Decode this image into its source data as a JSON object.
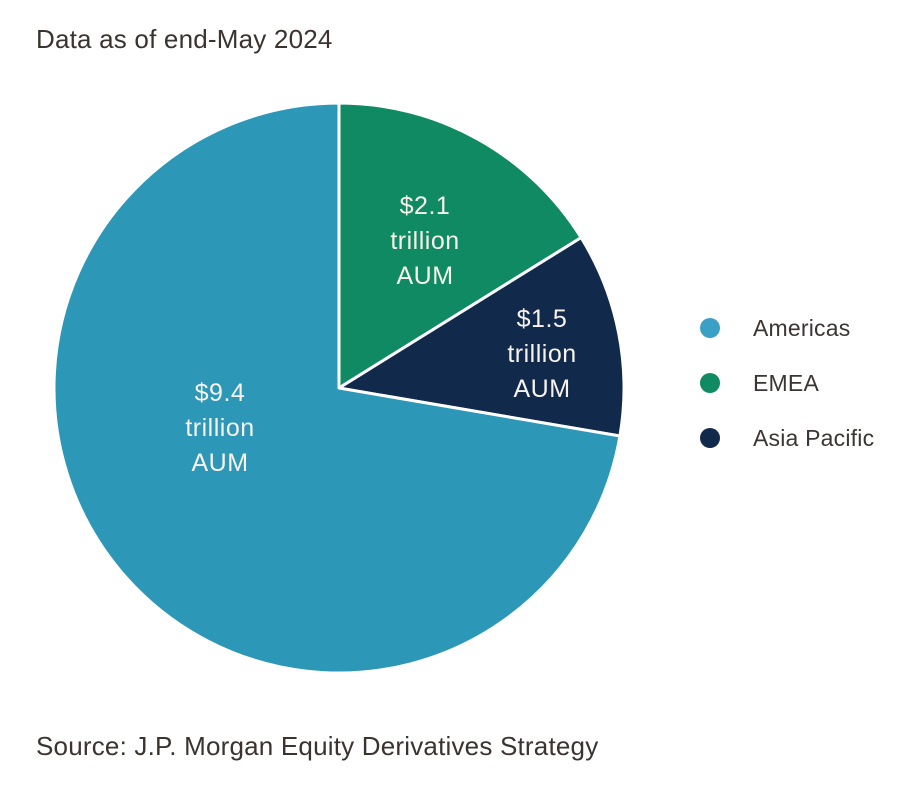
{
  "title": "Data as of end-May 2024",
  "source": "Source: J.P. Morgan Equity Derivatives Strategy",
  "colors": {
    "americas": "#2D97B8",
    "emea": "#108A62",
    "asia_pacific": "#112A4C",
    "slice_label_text": "#F7F3EC",
    "body_text": "#3B3330"
  },
  "chart_data": {
    "type": "pie",
    "title": "Data as of end-May 2024",
    "unit": "trillion USD AUM",
    "total": 13.0,
    "start_angle_deg": 0,
    "direction": "clockwise",
    "grid": false,
    "legend_position": "right",
    "slices": [
      {
        "name": "EMEA",
        "value": 2.1,
        "label_lines": [
          "$2.1",
          "trillion",
          "AUM"
        ],
        "color": "#108A62"
      },
      {
        "name": "Asia Pacific",
        "value": 1.5,
        "label_lines": [
          "$1.5",
          "trillion",
          "AUM"
        ],
        "color": "#112A4C"
      },
      {
        "name": "Americas",
        "value": 9.4,
        "label_lines": [
          "$9.4",
          "trillion",
          "AUM"
        ],
        "color": "#2D97B8"
      }
    ],
    "legend": [
      {
        "label": "Americas",
        "color": "#3BA0C5"
      },
      {
        "label": "EMEA",
        "color": "#108A62"
      },
      {
        "label": "Asia Pacific",
        "color": "#112A4C"
      }
    ]
  }
}
